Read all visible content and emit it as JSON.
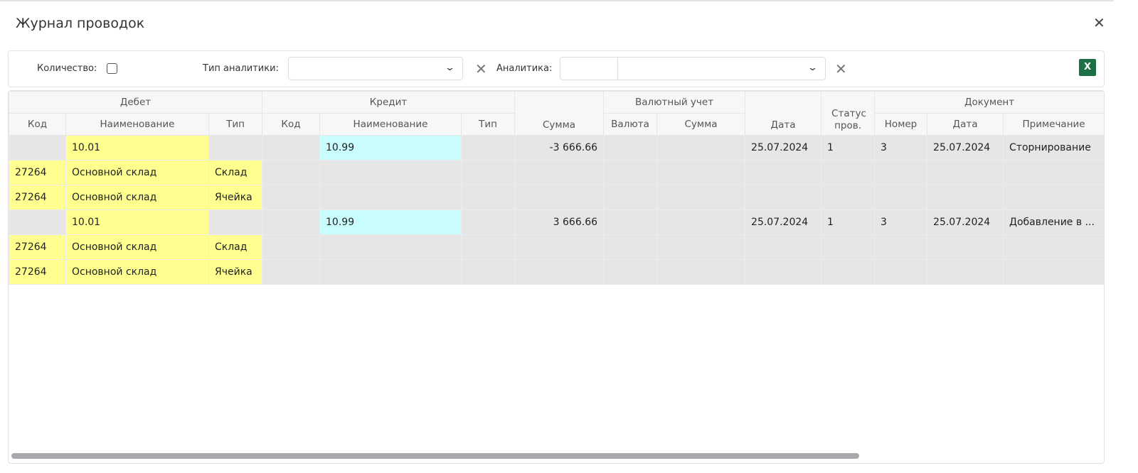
{
  "title": "Журнал проводок",
  "toolbar": {
    "quantity_label": "Количество:",
    "quantity_checked": false,
    "analytics_type_label": "Тип аналитики:",
    "analytics_type_value": "",
    "analytics_label": "Аналитика:",
    "analytics_value": "",
    "excel_label": "X"
  },
  "columns": {
    "groups": [
      "Дебет",
      "Кредит",
      "Валютный учет",
      "Документ"
    ],
    "headers": [
      "Код",
      "Наименование",
      "Тип",
      "Код",
      "Наименование",
      "Тип",
      "Сумма",
      "Валюта",
      "Сумма",
      "Дата",
      "Статус пров.",
      "Номер",
      "Дата",
      "Примечание"
    ]
  },
  "rows": [
    {
      "cells": [
        "",
        "10.01",
        "",
        "",
        "10.99",
        "",
        "-3 666.66",
        "",
        "",
        "25.07.2024",
        "1",
        "3",
        "25.07.2024",
        "Сторнирование"
      ],
      "colors": [
        "",
        "y",
        "",
        "",
        "c",
        "",
        "",
        "",
        "",
        "",
        "",
        "",
        "",
        ""
      ]
    },
    {
      "cells": [
        "27264",
        "Основной склад",
        "Склад",
        "",
        "",
        "",
        "",
        "",
        "",
        "",
        "",
        "",
        "",
        ""
      ],
      "colors": [
        "y",
        "y",
        "y",
        "",
        "",
        "",
        "",
        "",
        "",
        "",
        "",
        "",
        "",
        ""
      ]
    },
    {
      "cells": [
        "27264",
        "Основной склад",
        "Ячейка",
        "",
        "",
        "",
        "",
        "",
        "",
        "",
        "",
        "",
        "",
        ""
      ],
      "colors": [
        "y",
        "y",
        "y",
        "",
        "",
        "",
        "",
        "",
        "",
        "",
        "",
        "",
        "",
        ""
      ]
    },
    {
      "cells": [
        "",
        "10.01",
        "",
        "",
        "10.99",
        "",
        "3 666.66",
        "",
        "",
        "25.07.2024",
        "1",
        "3",
        "25.07.2024",
        "Добавление в ..."
      ],
      "colors": [
        "",
        "y",
        "",
        "",
        "c",
        "",
        "",
        "",
        "",
        "",
        "",
        "",
        "",
        ""
      ]
    },
    {
      "cells": [
        "27264",
        "Основной склад",
        "Склад",
        "",
        "",
        "",
        "",
        "",
        "",
        "",
        "",
        "",
        "",
        ""
      ],
      "colors": [
        "y",
        "y",
        "y",
        "",
        "",
        "",
        "",
        "",
        "",
        "",
        "",
        "",
        "",
        ""
      ]
    },
    {
      "cells": [
        "27264",
        "Основной склад",
        "Ячейка",
        "",
        "",
        "",
        "",
        "",
        "",
        "",
        "",
        "",
        "",
        ""
      ],
      "colors": [
        "y",
        "y",
        "y",
        "",
        "",
        "",
        "",
        "",
        "",
        "",
        "",
        "",
        "",
        ""
      ]
    }
  ]
}
